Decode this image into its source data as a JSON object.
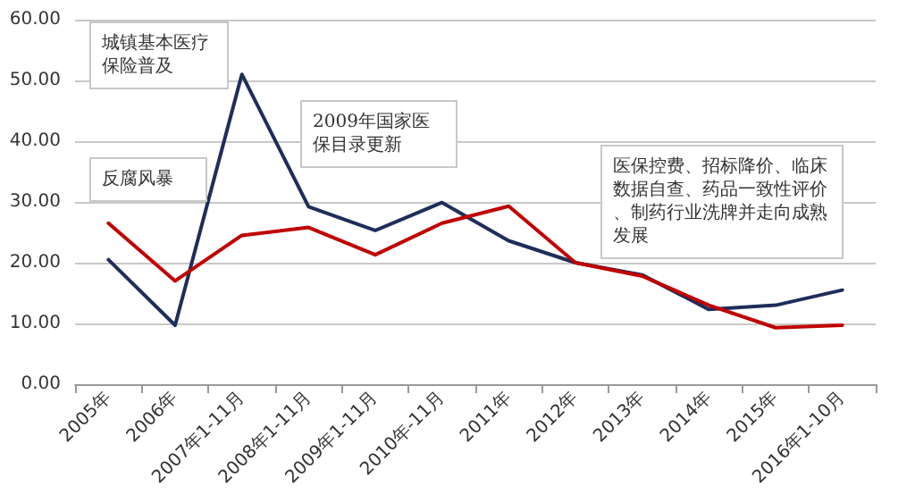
{
  "chart_data": {
    "type": "line",
    "categories": [
      "2005年",
      "2006年",
      "2007年1-11月",
      "2008年1-11月",
      "2009年1-11月",
      "2010年-11月",
      "2011年",
      "2012年",
      "2013年",
      "2014年",
      "2015年",
      "2016年1-10月"
    ],
    "series": [
      {
        "color": "#1f2d5a",
        "values": [
          20.5,
          9.7,
          51,
          29.2,
          25.3,
          29.9,
          23.6,
          20,
          18,
          12.3,
          13,
          15.5
        ]
      },
      {
        "color": "#c00000",
        "values": [
          26.5,
          17,
          24.5,
          25.8,
          21.3,
          26.5,
          29.3,
          20,
          17.8,
          13,
          9.3,
          9.7
        ]
      }
    ],
    "ylim": [
      0,
      60
    ],
    "yticks": [
      {
        "value": 0,
        "label": "0.00"
      },
      {
        "value": 10,
        "label": "10.00"
      },
      {
        "value": 20,
        "label": "20.00"
      },
      {
        "value": 30,
        "label": "30.00"
      },
      {
        "value": 40,
        "label": "40.00"
      },
      {
        "value": 50,
        "label": "50.00"
      },
      {
        "value": 60,
        "label": "60.00"
      }
    ],
    "grid": "y",
    "marker": "none",
    "line_style": "solid",
    "annotations": [
      "城镇基本医疗保险普及",
      "反腐风暴",
      "2009年国家医保目录更新",
      "医保控费、招标降价、临床数据自查、药品一致性评价、制药行业洗牌并走向成熟发展"
    ]
  }
}
